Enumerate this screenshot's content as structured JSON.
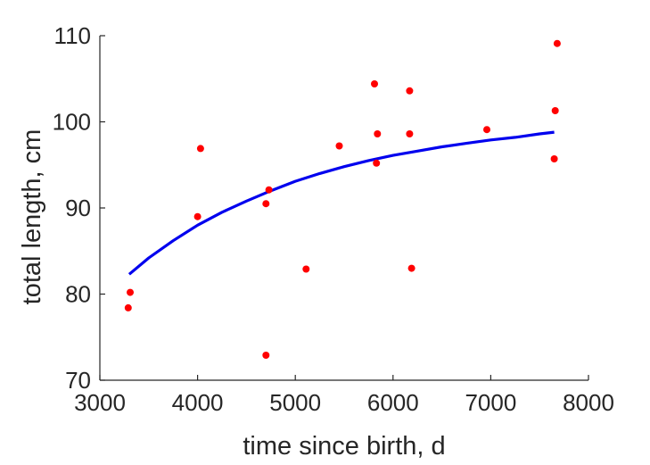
{
  "chart_data": {
    "type": "scatter",
    "title": "",
    "xlabel": "time since birth, d",
    "ylabel": "total length, cm",
    "xlim": [
      3000,
      8000
    ],
    "ylim": [
      70,
      110
    ],
    "xticks": [
      3000,
      4000,
      5000,
      6000,
      7000,
      8000
    ],
    "yticks": [
      70,
      80,
      90,
      100,
      110
    ],
    "xtick_labels": [
      "3000",
      "4000",
      "5000",
      "6000",
      "7000",
      "8000"
    ],
    "ytick_labels": [
      "70",
      "80",
      "90",
      "100",
      "110"
    ],
    "grid": false,
    "colors": {
      "points": "#ff0000",
      "curve": "#0000ee",
      "axes": "#262626"
    },
    "series": [
      {
        "kind": "scatter",
        "points": [
          [
            3290,
            78.4
          ],
          [
            3310,
            80.2
          ],
          [
            4000,
            89.0
          ],
          [
            4030,
            96.9
          ],
          [
            4700,
            72.9
          ],
          [
            4700,
            90.5
          ],
          [
            4730,
            92.1
          ],
          [
            5110,
            82.9
          ],
          [
            5450,
            97.2
          ],
          [
            5810,
            104.4
          ],
          [
            5830,
            95.2
          ],
          [
            5840,
            98.6
          ],
          [
            6170,
            103.6
          ],
          [
            6170,
            98.6
          ],
          [
            6190,
            83.0
          ],
          [
            6960,
            99.1
          ],
          [
            7650,
            95.7
          ],
          [
            7660,
            101.3
          ],
          [
            7680,
            109.1
          ]
        ]
      },
      {
        "kind": "line",
        "x": [
          3300,
          3500,
          3750,
          4000,
          4250,
          4500,
          4750,
          5000,
          5250,
          5500,
          5750,
          6000,
          6250,
          6500,
          6750,
          7000,
          7250,
          7500,
          7650
        ],
        "y": [
          82.3,
          84.2,
          86.2,
          88.0,
          89.5,
          90.8,
          92.0,
          93.1,
          94.0,
          94.8,
          95.5,
          96.1,
          96.6,
          97.1,
          97.5,
          97.9,
          98.2,
          98.6,
          98.8
        ]
      }
    ]
  }
}
